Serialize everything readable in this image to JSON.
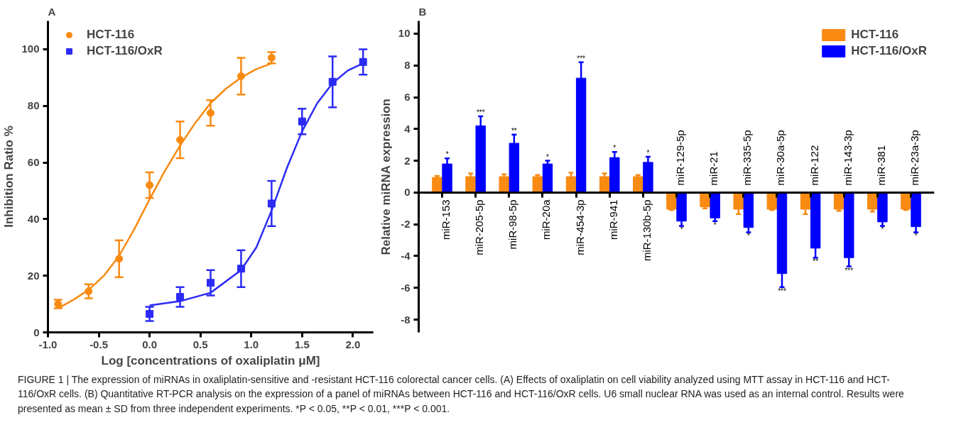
{
  "chart_data": [
    {
      "type": "scatter",
      "title": "A",
      "xlabel": "Log [concentrations of oxaliplatin μM]",
      "ylabel": "Inhibition Ratio %",
      "xlim": [
        -1.0,
        2.2
      ],
      "ylim": [
        0,
        110
      ],
      "xticks": [
        {
          "value": -1.0,
          "label": "-1.0"
        },
        {
          "value": -0.5,
          "label": "-0.5"
        },
        {
          "value": 0,
          "label": "0.0"
        },
        {
          "value": 0.5,
          "label": "0.5"
        },
        {
          "value": 1.0,
          "label": "1.0"
        },
        {
          "value": 1.5,
          "label": "1.5"
        },
        {
          "value": 2.0,
          "label": "2.0"
        }
      ],
      "yticks": [
        0,
        20,
        40,
        60,
        80,
        100
      ],
      "grid": false,
      "legend": "top left",
      "series": [
        {
          "name": "HCT-116",
          "type": "scatter",
          "marker": "circle",
          "color": "#f98a12",
          "x": [
            -0.9,
            -0.6,
            -0.3,
            0,
            0.3,
            0.6,
            0.9,
            1.2
          ],
          "values": [
            10,
            14.5,
            26,
            52,
            68,
            77.5,
            90.5,
            97
          ],
          "errors": [
            1.5,
            2.5,
            6.5,
            4.5,
            6.5,
            4.5,
            6.5,
            2
          ]
        },
        {
          "name": "HCT-116/OxR",
          "type": "scatter",
          "marker": "square",
          "color": "#2b2bf5",
          "x": [
            0,
            0.3,
            0.6,
            0.9,
            1.2,
            1.5,
            1.8,
            2.1
          ],
          "values": [
            6.5,
            12.5,
            17.5,
            22.5,
            45.5,
            74.5,
            88.5,
            95.5
          ],
          "errors": [
            2.5,
            3.5,
            4.5,
            6.5,
            8,
            4.5,
            9,
            4.5
          ]
        },
        {
          "type": "line",
          "color": "#f98a12",
          "x": [
            -0.9,
            -0.75,
            -0.6,
            -0.45,
            -0.3,
            -0.15,
            0,
            0.15,
            0.3,
            0.45,
            0.6,
            0.75,
            0.9,
            1.05,
            1.2
          ],
          "values": [
            8.5,
            11.5,
            15,
            20,
            27,
            36.5,
            47,
            57,
            66,
            74,
            81,
            86,
            90,
            93,
            95
          ]
        },
        {
          "type": "line",
          "color": "#2b2bf5",
          "x": [
            0,
            0.3,
            0.6,
            0.9,
            1.05,
            1.2,
            1.35,
            1.5,
            1.65,
            1.8,
            1.95,
            2.1
          ],
          "values": [
            9.5,
            11,
            14,
            22,
            30,
            43,
            58,
            71,
            81,
            88,
            92.5,
            95
          ]
        }
      ],
      "annotations": [
        "FIGURE 1 | The expression of miRNAs in oxaliplatin-sensitive and -resistant HCT-116 colorectal cancer cells. (A) Effects of oxaliplatin on cell viability analyzed using MTT assay in HCT-116 and HCT-116/OxR cells. (B) Quantitative RT-PCR analysis on the expression of a panel of miRNAs between HCT-116 and HCT-116/OxR cells. U6 small nuclear RNA was used as an internal control. Results were presented as mean ± SD from three independent experiments. *P < 0.05, **P < 0.01, ***P < 0.001."
      ]
    },
    {
      "type": "bar",
      "title": "B",
      "ylabel": "Relative miRNA expression",
      "ylim": [
        -8.8,
        10.8
      ],
      "yticks": [
        -8,
        -6,
        -4,
        -2,
        0,
        2,
        4,
        6,
        8,
        10
      ],
      "grid": false,
      "legend": "top right",
      "categories": [
        "miR-153",
        "miR-205-5p",
        "miR-98-5p",
        "miR-20a",
        "miR-454-3p",
        "miR-941",
        "miR-130b-5p",
        "miR-129-5p",
        "miR-21",
        "miR-335-5p",
        "miR-30a-5p",
        "miR-122",
        "miR-143-3p",
        "miR-381",
        "miR-23a-3p"
      ],
      "series": [
        {
          "name": "HCT-116",
          "color": "#f98a12",
          "values": [
            0.95,
            1.0,
            1.0,
            1.0,
            1.0,
            1.0,
            1.0,
            -1.05,
            -0.9,
            -1.05,
            -1.05,
            -1.05,
            -1.05,
            -1.05,
            -1.05
          ],
          "errors": [
            0.1,
            0.2,
            0.15,
            0.1,
            0.25,
            0.2,
            0.1,
            0.05,
            0.1,
            0.3,
            0.05,
            0.3,
            0.1,
            0.15,
            0.05
          ]
        },
        {
          "name": "HCT-116/OxR",
          "color": "#0000ff",
          "values": [
            1.8,
            4.2,
            3.1,
            1.8,
            7.2,
            2.2,
            1.9,
            -1.8,
            -1.6,
            -2.2,
            -5.1,
            -3.5,
            -4.1,
            -1.85,
            -2.15
          ],
          "errors": [
            0.35,
            0.6,
            0.55,
            0.2,
            1.0,
            0.35,
            0.35,
            0.3,
            0.2,
            0.3,
            0.85,
            0.6,
            0.55,
            0.25,
            0.35
          ]
        }
      ],
      "annotations": [
        {
          "text": "*",
          "x": "miR-153",
          "y": 2.15
        },
        {
          "text": "***",
          "x": "miR-205-5p",
          "y": 4.8
        },
        {
          "text": "**",
          "x": "miR-98-5p",
          "y": 3.65
        },
        {
          "text": "*",
          "x": "miR-20a",
          "y": 2.0
        },
        {
          "text": "***",
          "x": "miR-454-3p",
          "y": 8.2
        },
        {
          "text": "*",
          "x": "miR-941",
          "y": 2.55
        },
        {
          "text": "*",
          "x": "miR-130b-5p",
          "y": 2.25
        },
        {
          "text": "*",
          "x": "miR-129-5p",
          "y": -2.1
        },
        {
          "text": "*",
          "x": "miR-21",
          "y": -1.8
        },
        {
          "text": "*",
          "x": "miR-335-5p",
          "y": -2.5
        },
        {
          "text": "***",
          "x": "miR-30a-5p",
          "y": -5.95
        },
        {
          "text": "**",
          "x": "miR-122",
          "y": -4.1
        },
        {
          "text": "***",
          "x": "miR-143-3p",
          "y": -4.65
        },
        {
          "text": "*",
          "x": "miR-381",
          "y": -2.1
        },
        {
          "text": "*",
          "x": "miR-23a-3p",
          "y": -2.5
        }
      ]
    }
  ]
}
